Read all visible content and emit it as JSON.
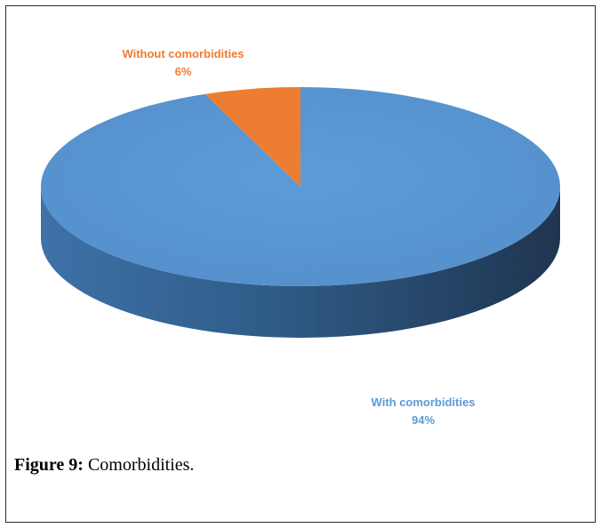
{
  "chart_data": {
    "type": "pie",
    "title": "",
    "style": "3d",
    "start_angle_deg": -90,
    "slices": [
      {
        "label": "With comorbidities",
        "percent_label": "94%",
        "value": 94,
        "color": "#5b9bd5",
        "side_color": "#2e5f8e"
      },
      {
        "label": "Without comorbidities",
        "percent_label": "6%",
        "value": 6,
        "color": "#ed7d31",
        "side_color": "#b35a1e"
      }
    ]
  },
  "caption": {
    "prefix": "Figure 9:",
    "text": " Comorbidities."
  }
}
